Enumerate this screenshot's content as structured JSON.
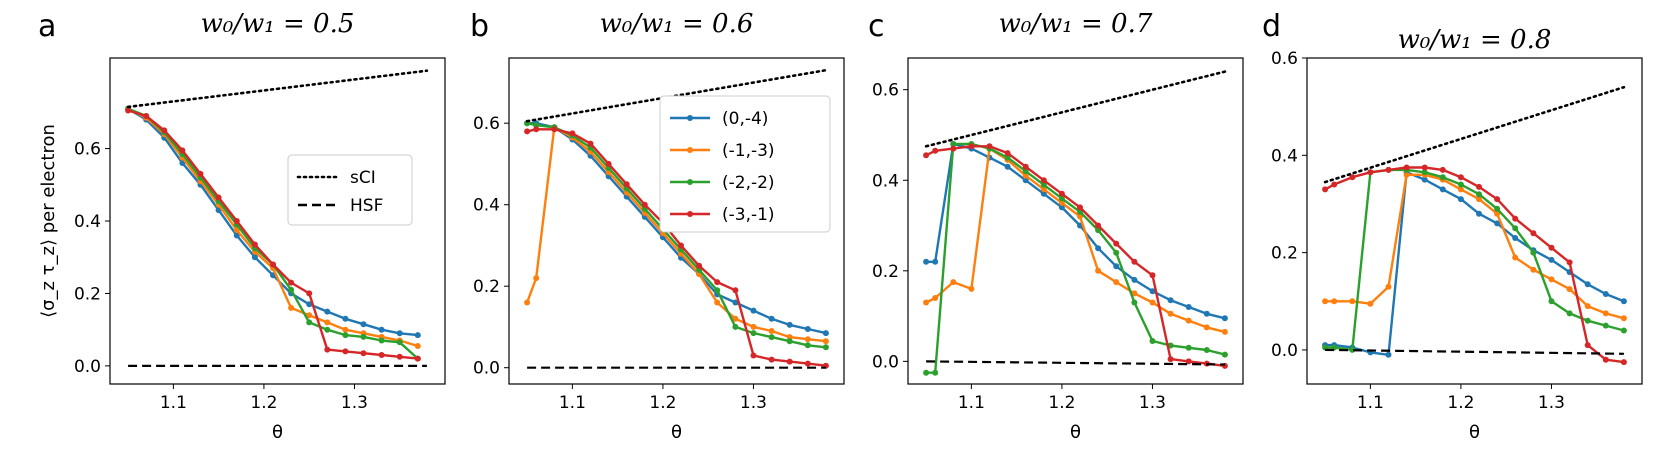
{
  "colors": {
    "blue": "#1f77b4",
    "orange": "#ff7f0e",
    "green": "#2ca02c",
    "red": "#d62728",
    "reference": "#000000"
  },
  "ylabel": "⟨σ_z τ_z⟩ per electron",
  "chart_data": [
    {
      "type": "line",
      "panel": "a",
      "title": "w₀/w₁ = 0.5",
      "xlabel": "θ",
      "xlim": [
        1.03,
        1.4
      ],
      "ylim": [
        -0.05,
        0.85
      ],
      "xticks": [
        1.1,
        1.2,
        1.3
      ],
      "yticks": [
        0.0,
        0.2,
        0.4,
        0.6
      ],
      "legend": {
        "position": "center-right",
        "entries": [
          "sCI",
          "HSF"
        ]
      },
      "x": [
        1.05,
        1.07,
        1.09,
        1.11,
        1.13,
        1.15,
        1.17,
        1.19,
        1.21,
        1.23,
        1.25,
        1.27,
        1.29,
        1.31,
        1.33,
        1.35,
        1.37
      ],
      "series": [
        {
          "name": "(0,-4)",
          "color": "blue",
          "values": [
            0.71,
            0.68,
            0.63,
            0.56,
            0.5,
            0.43,
            0.36,
            0.3,
            0.25,
            0.2,
            0.17,
            0.15,
            0.13,
            0.115,
            0.1,
            0.09,
            0.085
          ]
        },
        {
          "name": "(-1,-3)",
          "color": "orange",
          "values": [
            0.71,
            0.685,
            0.64,
            0.575,
            0.51,
            0.445,
            0.375,
            0.315,
            0.27,
            0.16,
            0.14,
            0.12,
            0.1,
            0.09,
            0.08,
            0.07,
            0.055
          ]
        },
        {
          "name": "(-2,-2)",
          "color": "green",
          "values": [
            0.71,
            0.69,
            0.645,
            0.585,
            0.52,
            0.455,
            0.39,
            0.325,
            0.28,
            0.21,
            0.12,
            0.1,
            0.085,
            0.08,
            0.07,
            0.065,
            0.02
          ]
        },
        {
          "name": "(-3,-1)",
          "color": "red",
          "values": [
            0.705,
            0.69,
            0.65,
            0.595,
            0.53,
            0.465,
            0.4,
            0.335,
            0.28,
            0.23,
            0.2,
            0.045,
            0.04,
            0.035,
            0.03,
            0.025,
            0.02
          ]
        },
        {
          "name": "sCI",
          "color": "reference",
          "style": "dotted",
          "x": [
            1.05,
            1.38
          ],
          "values": [
            0.715,
            0.815
          ]
        },
        {
          "name": "HSF",
          "color": "reference",
          "style": "dashed",
          "x": [
            1.05,
            1.38
          ],
          "values": [
            0.0,
            0.0
          ]
        }
      ]
    },
    {
      "type": "line",
      "panel": "b",
      "title": "w₀/w₁ = 0.6",
      "xlabel": "θ",
      "xlim": [
        1.03,
        1.4
      ],
      "ylim": [
        -0.04,
        0.76
      ],
      "xticks": [
        1.1,
        1.2,
        1.3
      ],
      "yticks": [
        0.0,
        0.2,
        0.4,
        0.6
      ],
      "legend": {
        "position": "top-right",
        "entries": [
          "(0,-4)",
          "(-1,-3)",
          "(-2,-2)",
          "(-3,-1)"
        ]
      },
      "x": [
        1.05,
        1.06,
        1.08,
        1.1,
        1.12,
        1.14,
        1.16,
        1.18,
        1.2,
        1.22,
        1.24,
        1.26,
        1.28,
        1.3,
        1.32,
        1.34,
        1.36,
        1.38
      ],
      "series": [
        {
          "name": "(0,-4)",
          "color": "blue",
          "values": [
            0.6,
            0.6,
            0.59,
            0.56,
            0.52,
            0.47,
            0.42,
            0.37,
            0.32,
            0.27,
            0.23,
            0.18,
            0.16,
            0.14,
            0.12,
            0.105,
            0.095,
            0.085
          ]
        },
        {
          "name": "(-1,-3)",
          "color": "orange",
          "values": [
            0.16,
            0.22,
            0.59,
            0.565,
            0.53,
            0.48,
            0.43,
            0.38,
            0.33,
            0.28,
            0.23,
            0.16,
            0.12,
            0.1,
            0.09,
            0.075,
            0.07,
            0.065
          ]
        },
        {
          "name": "(-2,-2)",
          "color": "green",
          "values": [
            0.6,
            0.595,
            0.59,
            0.57,
            0.54,
            0.49,
            0.44,
            0.39,
            0.34,
            0.29,
            0.24,
            0.19,
            0.1,
            0.085,
            0.075,
            0.065,
            0.055,
            0.05
          ]
        },
        {
          "name": "(-3,-1)",
          "color": "red",
          "values": [
            0.58,
            0.585,
            0.585,
            0.575,
            0.55,
            0.5,
            0.45,
            0.4,
            0.355,
            0.3,
            0.25,
            0.21,
            0.19,
            0.03,
            0.02,
            0.015,
            0.01,
            0.005
          ]
        },
        {
          "name": "sCI",
          "color": "reference",
          "style": "dotted",
          "x": [
            1.05,
            1.38
          ],
          "values": [
            0.605,
            0.73
          ]
        },
        {
          "name": "HSF",
          "color": "reference",
          "style": "dashed",
          "x": [
            1.05,
            1.38
          ],
          "values": [
            0.0,
            0.0
          ]
        }
      ]
    },
    {
      "type": "line",
      "panel": "c",
      "title": "w₀/w₁ = 0.7",
      "xlabel": "θ",
      "xlim": [
        1.03,
        1.4
      ],
      "ylim": [
        -0.05,
        0.67
      ],
      "xticks": [
        1.1,
        1.2,
        1.3
      ],
      "yticks": [
        0.0,
        0.2,
        0.4,
        0.6
      ],
      "x": [
        1.05,
        1.06,
        1.08,
        1.1,
        1.12,
        1.14,
        1.16,
        1.18,
        1.2,
        1.22,
        1.24,
        1.26,
        1.28,
        1.3,
        1.32,
        1.34,
        1.36,
        1.38
      ],
      "series": [
        {
          "name": "(0,-4)",
          "color": "blue",
          "values": [
            0.22,
            0.22,
            0.48,
            0.47,
            0.45,
            0.43,
            0.4,
            0.37,
            0.34,
            0.3,
            0.25,
            0.21,
            0.18,
            0.155,
            0.135,
            0.12,
            0.105,
            0.095
          ]
        },
        {
          "name": "(-1,-3)",
          "color": "orange",
          "values": [
            0.13,
            0.14,
            0.175,
            0.16,
            0.47,
            0.445,
            0.41,
            0.38,
            0.35,
            0.32,
            0.2,
            0.175,
            0.15,
            0.13,
            0.105,
            0.09,
            0.075,
            0.065
          ]
        },
        {
          "name": "(-2,-2)",
          "color": "green",
          "values": [
            -0.025,
            -0.025,
            0.48,
            0.48,
            0.47,
            0.45,
            0.42,
            0.39,
            0.36,
            0.33,
            0.29,
            0.24,
            0.13,
            0.045,
            0.035,
            0.03,
            0.025,
            0.015
          ]
        },
        {
          "name": "(-3,-1)",
          "color": "red",
          "values": [
            0.455,
            0.465,
            0.47,
            0.475,
            0.475,
            0.46,
            0.43,
            0.4,
            0.37,
            0.34,
            0.3,
            0.26,
            0.22,
            0.19,
            0.005,
            0.0,
            -0.005,
            -0.01
          ]
        },
        {
          "name": "sCI",
          "color": "reference",
          "style": "dotted",
          "x": [
            1.05,
            1.38
          ],
          "values": [
            0.475,
            0.64
          ]
        },
        {
          "name": "HSF",
          "color": "reference",
          "style": "dashed",
          "x": [
            1.05,
            1.38
          ],
          "values": [
            0.0,
            -0.007
          ]
        }
      ]
    },
    {
      "type": "line",
      "panel": "d",
      "title": "w₀/w₁ = 0.8",
      "xlabel": "θ",
      "xlim": [
        1.03,
        1.4
      ],
      "ylim": [
        -0.07,
        0.6
      ],
      "xticks": [
        1.1,
        1.2,
        1.3
      ],
      "yticks": [
        0.0,
        0.2,
        0.4,
        0.6
      ],
      "x": [
        1.05,
        1.06,
        1.08,
        1.1,
        1.12,
        1.14,
        1.16,
        1.18,
        1.2,
        1.22,
        1.24,
        1.26,
        1.28,
        1.3,
        1.32,
        1.34,
        1.36,
        1.38
      ],
      "series": [
        {
          "name": "(0,-4)",
          "color": "blue",
          "values": [
            0.01,
            0.01,
            0.005,
            -0.005,
            -0.01,
            0.365,
            0.35,
            0.33,
            0.31,
            0.28,
            0.26,
            0.23,
            0.205,
            0.185,
            0.16,
            0.135,
            0.115,
            0.1
          ]
        },
        {
          "name": "(-1,-3)",
          "color": "orange",
          "values": [
            0.1,
            0.1,
            0.1,
            0.095,
            0.13,
            0.36,
            0.36,
            0.35,
            0.33,
            0.31,
            0.28,
            0.19,
            0.165,
            0.145,
            0.125,
            0.09,
            0.075,
            0.065
          ]
        },
        {
          "name": "(-2,-2)",
          "color": "green",
          "values": [
            0.005,
            0.005,
            0.0,
            0.365,
            0.37,
            0.37,
            0.365,
            0.355,
            0.34,
            0.32,
            0.29,
            0.25,
            0.2,
            0.1,
            0.075,
            0.06,
            0.05,
            0.04
          ]
        },
        {
          "name": "(-3,-1)",
          "color": "red",
          "values": [
            0.33,
            0.34,
            0.355,
            0.365,
            0.37,
            0.375,
            0.375,
            0.37,
            0.355,
            0.335,
            0.31,
            0.27,
            0.24,
            0.21,
            0.18,
            0.01,
            -0.02,
            -0.025
          ]
        },
        {
          "name": "sCI",
          "color": "reference",
          "style": "dotted",
          "x": [
            1.05,
            1.38
          ],
          "values": [
            0.345,
            0.54
          ]
        },
        {
          "name": "HSF",
          "color": "reference",
          "style": "dashed",
          "x": [
            1.05,
            1.38
          ],
          "values": [
            0.0,
            -0.008
          ]
        }
      ]
    }
  ]
}
